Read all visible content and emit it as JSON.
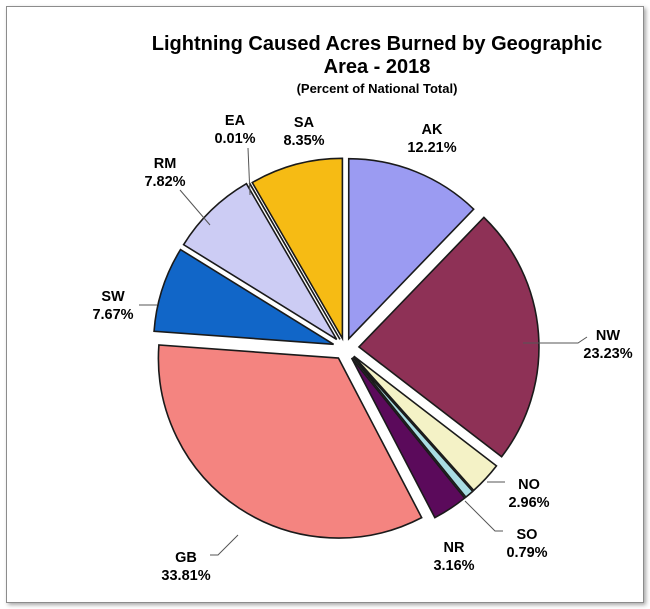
{
  "chart_data": {
    "type": "pie",
    "title": "Lightning Caused Acres Burned by Geographic Area - 2018",
    "title_lines": [
      "Lightning Caused Acres Burned by Geographic",
      "Area - 2018"
    ],
    "subtitle": "(Percent of National Total)",
    "slices": [
      {
        "name": "AK",
        "value": 12.21,
        "label": "12.21%",
        "color": "#9b9bf2"
      },
      {
        "name": "NW",
        "value": 23.23,
        "label": "23.23%",
        "color": "#8e3156"
      },
      {
        "name": "NO",
        "value": 2.96,
        "label": "2.96%",
        "color": "#f4f2c6"
      },
      {
        "name": "SO",
        "value": 0.79,
        "label": "0.79%",
        "color": "#a9dde3"
      },
      {
        "name": "NR",
        "value": 3.16,
        "label": "3.16%",
        "color": "#5b0a5b"
      },
      {
        "name": "GB",
        "value": 33.81,
        "label": "33.81%",
        "color": "#f48480"
      },
      {
        "name": "SW",
        "value": 7.67,
        "label": "7.67%",
        "color": "#1166c8"
      },
      {
        "name": "RM",
        "value": 7.82,
        "label": "7.82%",
        "color": "#ccccf4"
      },
      {
        "name": "EA",
        "value": 0.01,
        "label": "0.01%",
        "color": "#ffffff"
      },
      {
        "name": "SA",
        "value": 8.35,
        "label": "8.35%",
        "color": "#f6bb14"
      }
    ],
    "legend": "none"
  }
}
